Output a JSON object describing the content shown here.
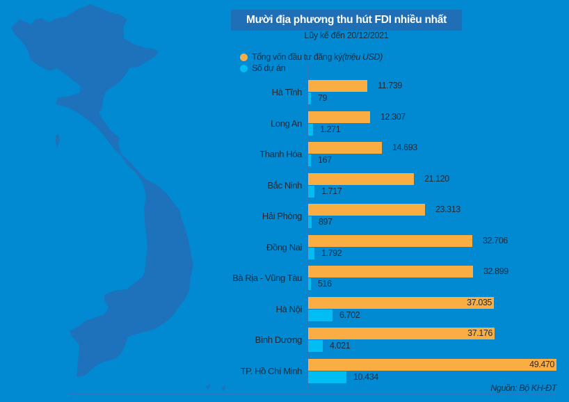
{
  "header": {
    "title": "Mười địa phương thu hút FDI nhiều nhất",
    "subtitle": "Lũy kế đến 20/12/2021"
  },
  "legend": {
    "capital_label": "Tổng vốn đầu tư đăng ký ",
    "capital_unit": "(triệu USD)",
    "projects_label": "Số dự án"
  },
  "colors": {
    "background": "#0189d2",
    "map": "#1d72bb",
    "title_bg": "#1f6fb6",
    "capital": "#f9ad42",
    "projects": "#00bdf2"
  },
  "source": "Nguồn: Bộ KH-ĐT",
  "chart_data": {
    "type": "bar",
    "orientation": "horizontal",
    "title": "Mười địa phương thu hút FDI nhiều nhất",
    "subtitle": "Lũy kế đến 20/12/2021",
    "categories": [
      "Hà Tĩnh",
      "Long An",
      "Thanh Hóa",
      "Bắc Ninh",
      "Hải Phòng",
      "Đồng Nai",
      "Bà Rịa - Vũng Tàu",
      "Hà Nội",
      "Bình Dương",
      "TP. Hồ Chí Minh"
    ],
    "series": [
      {
        "name": "Tổng vốn đầu tư đăng ký (triệu USD)",
        "values": [
          11739,
          12307,
          14693,
          21120,
          23313,
          32706,
          32899,
          37035,
          37176,
          49470
        ],
        "labels": [
          "11.739",
          "12.307",
          "14.693",
          "21.120",
          "23.313",
          "32.706",
          "32.899",
          "37.035",
          "37.176",
          "49.470"
        ]
      },
      {
        "name": "Số dự án",
        "values": [
          79,
          1271,
          167,
          1717,
          897,
          1792,
          516,
          6702,
          4021,
          10434
        ],
        "labels": [
          "79",
          "1.271",
          "167",
          "1.717",
          "897",
          "1.792",
          "516",
          "6.702",
          "4.021",
          "10.434"
        ]
      }
    ],
    "legend_position": "top-left",
    "grid": false,
    "source": "Nguồn: Bộ KH-ĐT"
  }
}
